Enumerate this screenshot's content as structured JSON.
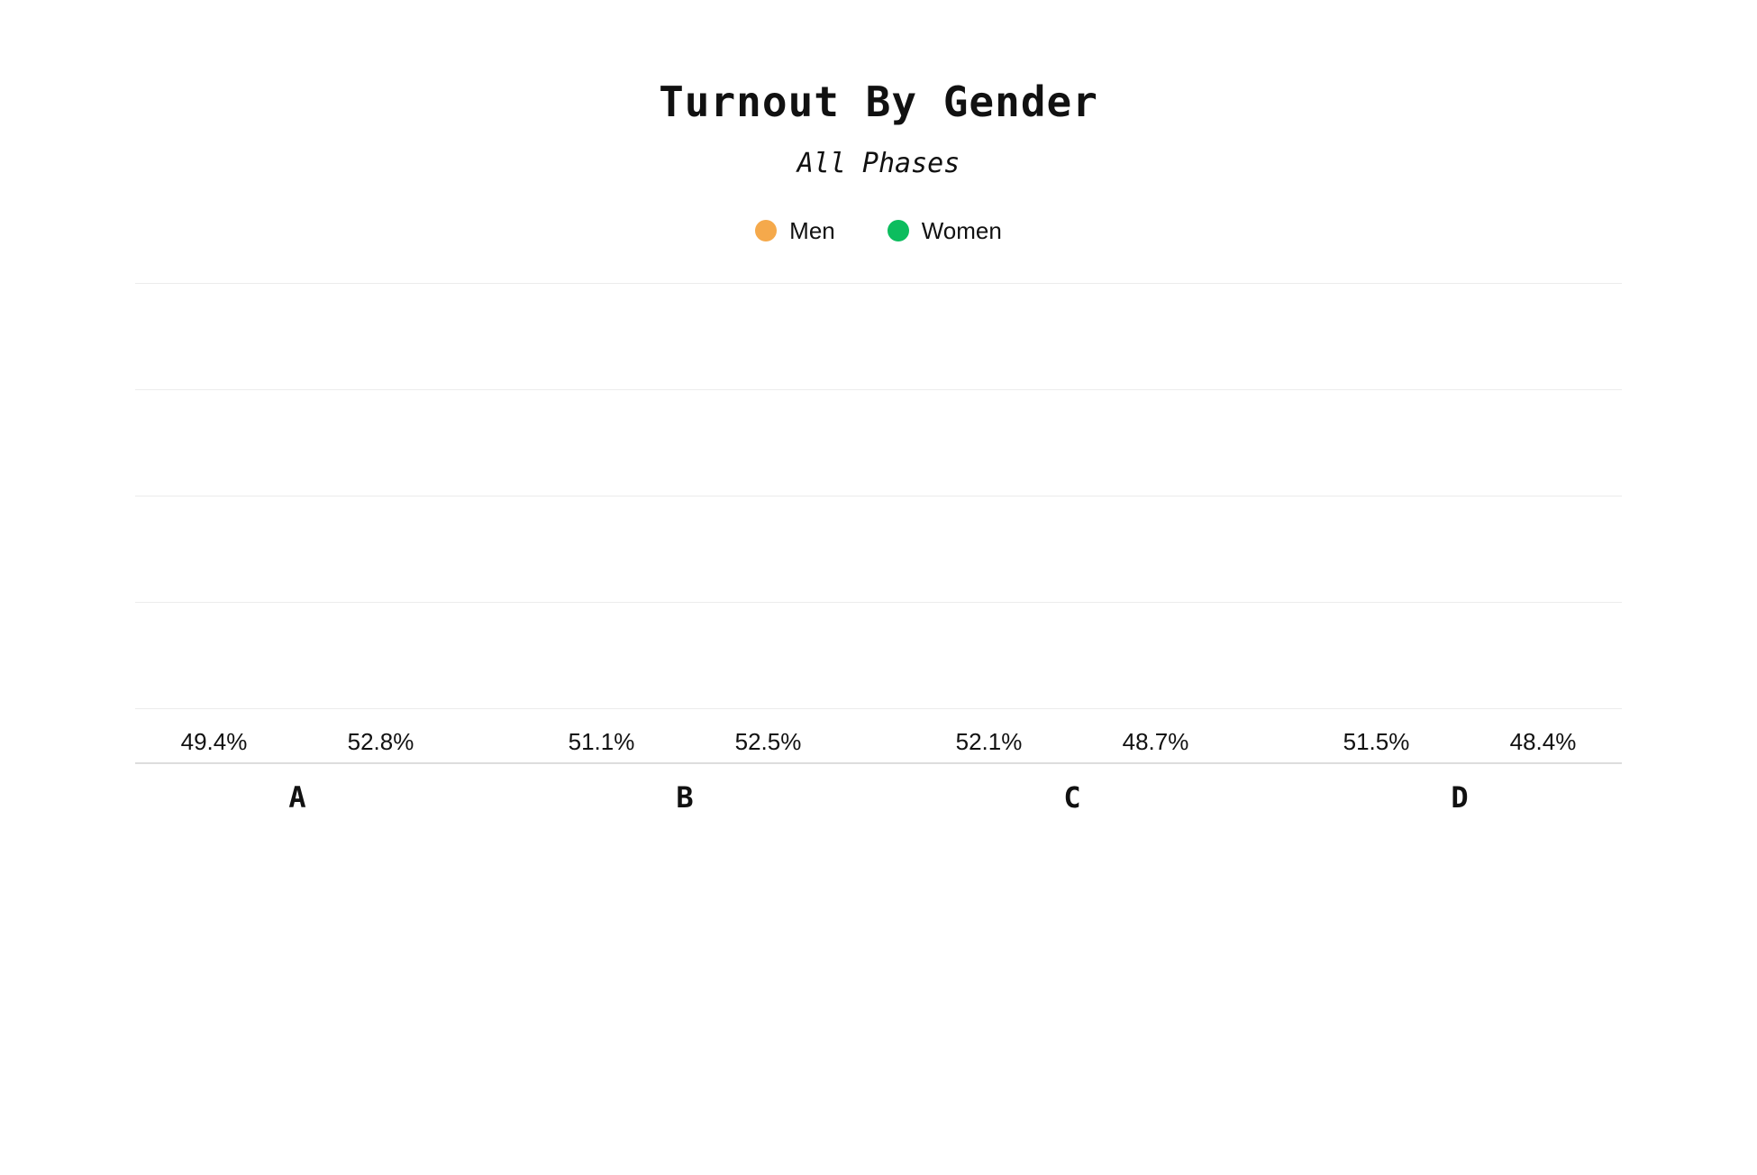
{
  "chart": {
    "title": "Turnout By Gender",
    "subtitle": "All Phases"
  },
  "chart_data": {
    "type": "bar",
    "title": "Turnout By Gender",
    "subtitle": "All Phases",
    "categories": [
      "A",
      "B",
      "C",
      "D"
    ],
    "series": [
      {
        "name": "Men",
        "color": "#F5A94B",
        "values": [
          49.4,
          51.1,
          52.1,
          51.5
        ]
      },
      {
        "name": "Women",
        "color": "#0CBD5E",
        "values": [
          52.8,
          52.5,
          48.7,
          48.4
        ]
      }
    ],
    "value_suffix": "%",
    "ylim": [
      45,
      54
    ],
    "gridlines": [
      46,
      48,
      50,
      52,
      54
    ],
    "grid": true,
    "legend_position": "top",
    "xlabel": "",
    "ylabel": ""
  }
}
